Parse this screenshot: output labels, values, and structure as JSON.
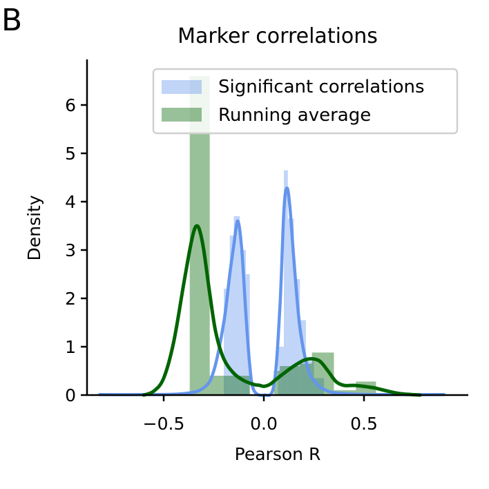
{
  "panel_label": "B",
  "chart_data": {
    "type": "histogram-kde",
    "title": "Marker correlations",
    "xlabel": "Pearson R",
    "ylabel": "Density",
    "xlim": [
      -0.85,
      1.0
    ],
    "ylim": [
      0,
      6.95
    ],
    "xticks": [
      -0.5,
      0.0,
      0.5
    ],
    "xtick_labels": [
      "−0.5",
      "0.0",
      "0.5"
    ],
    "yticks": [
      0,
      1,
      2,
      3,
      4,
      5,
      6
    ],
    "ytick_labels": [
      "0",
      "1",
      "2",
      "3",
      "4",
      "5",
      "6"
    ],
    "grid": false,
    "legend": {
      "position": "top-right",
      "entries": [
        "Significant correlations",
        "Running average"
      ]
    },
    "colors": {
      "significant": "#6495ED",
      "running": "#006400"
    },
    "series": [
      {
        "name": "Significant correlations",
        "kind": "hist",
        "bins": [
          {
            "x0": -0.8,
            "x1": -0.2,
            "y": 0.0
          },
          {
            "x0": -0.2,
            "x1": -0.17,
            "y": 2.2
          },
          {
            "x0": -0.17,
            "x1": -0.15,
            "y": 3.3
          },
          {
            "x0": -0.15,
            "x1": -0.12,
            "y": 3.7
          },
          {
            "x0": -0.12,
            "x1": -0.09,
            "y": 3.0
          },
          {
            "x0": -0.09,
            "x1": -0.07,
            "y": 2.5
          },
          {
            "x0": -0.07,
            "x1": 0.07,
            "y": 0.0
          },
          {
            "x0": 0.07,
            "x1": 0.1,
            "y": 1.0
          },
          {
            "x0": 0.1,
            "x1": 0.12,
            "y": 4.65
          },
          {
            "x0": 0.12,
            "x1": 0.15,
            "y": 3.65
          },
          {
            "x0": 0.15,
            "x1": 0.18,
            "y": 2.4
          },
          {
            "x0": 0.18,
            "x1": 0.21,
            "y": 1.55
          },
          {
            "x0": 0.21,
            "x1": 0.25,
            "y": 0.7
          },
          {
            "x0": 0.25,
            "x1": 0.3,
            "y": 0.35
          }
        ]
      },
      {
        "name": "Running average",
        "kind": "hist",
        "bins": [
          {
            "x0": -0.37,
            "x1": -0.27,
            "y": 6.6
          },
          {
            "x0": -0.27,
            "x1": -0.17,
            "y": 0.4
          },
          {
            "x0": -0.17,
            "x1": -0.07,
            "y": 0.4
          },
          {
            "x0": 0.05,
            "x1": 0.08,
            "y": 0.5
          },
          {
            "x0": 0.08,
            "x1": 0.18,
            "y": 0.6
          },
          {
            "x0": 0.18,
            "x1": 0.24,
            "y": 0.65
          },
          {
            "x0": 0.24,
            "x1": 0.35,
            "y": 0.88
          },
          {
            "x0": 0.35,
            "x1": 0.46,
            "y": 0.1
          },
          {
            "x0": 0.46,
            "x1": 0.56,
            "y": 0.28
          }
        ]
      },
      {
        "name": "Significant correlations",
        "kind": "kde",
        "x": [
          -0.82,
          -0.6,
          -0.4,
          -0.3,
          -0.25,
          -0.2,
          -0.17,
          -0.15,
          -0.13,
          -0.11,
          -0.09,
          -0.07,
          -0.05,
          0.0,
          0.05,
          0.08,
          0.1,
          0.115,
          0.13,
          0.15,
          0.18,
          0.22,
          0.26,
          0.3,
          0.35,
          0.45,
          0.6,
          0.9
        ],
        "y": [
          0.01,
          0.01,
          0.03,
          0.15,
          0.5,
          1.5,
          2.5,
          3.1,
          3.6,
          3.0,
          1.7,
          0.6,
          0.1,
          0.0,
          0.2,
          1.8,
          3.8,
          4.28,
          3.9,
          2.8,
          1.4,
          0.55,
          0.25,
          0.12,
          0.05,
          0.02,
          0.01,
          0.01
        ]
      },
      {
        "name": "Running average",
        "kind": "kde",
        "x": [
          -0.6,
          -0.55,
          -0.5,
          -0.45,
          -0.4,
          -0.37,
          -0.35,
          -0.335,
          -0.32,
          -0.3,
          -0.27,
          -0.24,
          -0.2,
          -0.15,
          -0.1,
          -0.05,
          -0.02,
          0.0,
          0.03,
          0.06,
          0.1,
          0.15,
          0.2,
          0.24,
          0.28,
          0.32,
          0.36,
          0.4,
          0.45,
          0.5,
          0.55,
          0.6,
          0.68,
          0.78
        ],
        "y": [
          0.0,
          0.08,
          0.35,
          1.1,
          2.3,
          3.0,
          3.38,
          3.5,
          3.4,
          3.0,
          2.1,
          1.3,
          0.75,
          0.45,
          0.3,
          0.22,
          0.2,
          0.18,
          0.22,
          0.32,
          0.45,
          0.6,
          0.72,
          0.75,
          0.7,
          0.5,
          0.28,
          0.2,
          0.2,
          0.18,
          0.15,
          0.1,
          0.03,
          0.0
        ]
      }
    ]
  }
}
